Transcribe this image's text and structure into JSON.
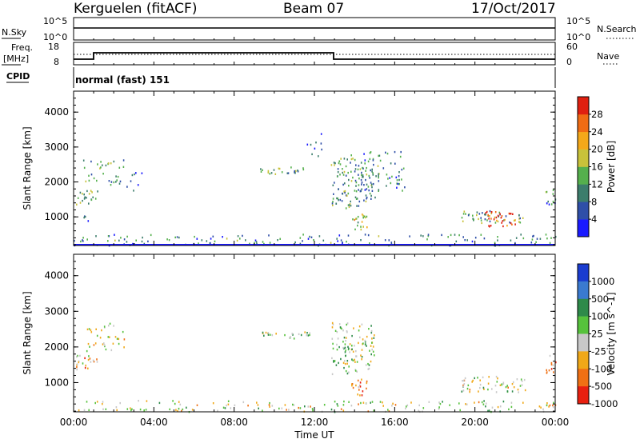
{
  "header": {
    "station": "Kerguelen (fitACF)",
    "beam": "Beam 07",
    "date": "17/Oct/2017"
  },
  "nsky": {
    "label": "N.Sky",
    "tick_top": "10^5",
    "tick_bottom": "10^0",
    "right_label": "N.Search",
    "right_tick_top": "10^5",
    "right_tick_bottom": "10^0"
  },
  "freq": {
    "label_line1": "Freq.",
    "label_line2": "[MHz]",
    "tick_top": "18",
    "tick_bottom": "8",
    "right_label": "Nave",
    "right_tick_top": "60",
    "right_tick_bottom": "0"
  },
  "cpid": {
    "label": "CPID",
    "text": "normal (fast) 151"
  },
  "chart_data": [
    {
      "type": "heatmap",
      "name": "Power",
      "ylabel": "Slant Range [km]",
      "xlabel": "Time UT",
      "xlim": [
        0,
        24
      ],
      "ylim": [
        180,
        4600
      ],
      "xticks": [
        "00:00",
        "04:00",
        "08:00",
        "12:00",
        "16:00",
        "20:00",
        "00:00"
      ],
      "yticks": [
        "1000",
        "2000",
        "3000",
        "4000"
      ],
      "colorbar": {
        "label": "Power [dB]",
        "ticks": [
          "4",
          "8",
          "12",
          "16",
          "20",
          "24",
          "28"
        ],
        "range": [
          0,
          30
        ],
        "colors": [
          "#1a1aff",
          "#2f4fa8",
          "#3c7d6c",
          "#55b04d",
          "#c8c23a",
          "#f4a81a",
          "#f06c14",
          "#e02010"
        ]
      },
      "ground_line_km": 180,
      "echo_regions": [
        {
          "t_start": 0.0,
          "t_end": 24.0,
          "r_start": 200,
          "r_end": 520,
          "level": 0.3,
          "density": 0.25
        },
        {
          "t_start": 0.1,
          "t_end": 1.2,
          "r_start": 1350,
          "r_end": 1800,
          "level": 0.4,
          "density": 0.55
        },
        {
          "t_start": 0.2,
          "t_end": 0.8,
          "r_start": 900,
          "r_end": 1050,
          "level": 0.2,
          "density": 0.4
        },
        {
          "t_start": 0.4,
          "t_end": 2.5,
          "r_start": 1900,
          "r_end": 2700,
          "level": 0.35,
          "density": 0.25
        },
        {
          "t_start": 2.5,
          "t_end": 3.4,
          "r_start": 1750,
          "r_end": 2300,
          "level": 0.2,
          "density": 0.2
        },
        {
          "t_start": 9.2,
          "t_end": 11.8,
          "r_start": 2250,
          "r_end": 2450,
          "level": 0.4,
          "density": 0.6
        },
        {
          "t_start": 11.5,
          "t_end": 12.5,
          "r_start": 2700,
          "r_end": 3500,
          "level": 0.2,
          "density": 0.15
        },
        {
          "t_start": 12.8,
          "t_end": 15.0,
          "r_start": 1250,
          "r_end": 2700,
          "level": 0.35,
          "density": 0.45
        },
        {
          "t_start": 13.8,
          "t_end": 16.5,
          "r_start": 1750,
          "r_end": 2900,
          "level": 0.3,
          "density": 0.3
        },
        {
          "t_start": 13.8,
          "t_end": 14.6,
          "r_start": 650,
          "r_end": 1150,
          "level": 0.55,
          "density": 0.6
        },
        {
          "t_start": 19.3,
          "t_end": 22.5,
          "r_start": 850,
          "r_end": 1200,
          "level": 0.4,
          "density": 0.5
        },
        {
          "t_start": 20.5,
          "t_end": 22.0,
          "r_start": 750,
          "r_end": 1200,
          "level": 0.9,
          "density": 0.6
        },
        {
          "t_start": 23.5,
          "t_end": 24.0,
          "r_start": 1250,
          "r_end": 1800,
          "level": 0.3,
          "density": 0.5
        }
      ]
    },
    {
      "type": "heatmap",
      "name": "Velocity",
      "ylabel": "Slant Range [km]",
      "xlabel": "Time UT",
      "xlim": [
        0,
        24
      ],
      "ylim": [
        180,
        4600
      ],
      "xticks": [
        "00:00",
        "04:00",
        "08:00",
        "12:00",
        "16:00",
        "20:00",
        "00:00"
      ],
      "yticks": [
        "1000",
        "2000",
        "3000",
        "4000"
      ],
      "colorbar": {
        "label": "Velocity [m s^-1]",
        "ticks": [
          "1000",
          "500",
          "100",
          "25",
          "-25",
          "-100",
          "-500",
          "-1000"
        ],
        "colors": [
          "#1a3cd0",
          "#3a7ad0",
          "#2e8a4a",
          "#56c23c",
          "#c8c8c8",
          "#f0a818",
          "#f07014",
          "#e82010"
        ]
      },
      "echo_regions": [
        {
          "t_start": 0.0,
          "t_end": 24.0,
          "r_start": 200,
          "r_end": 520,
          "level": 0.55,
          "density": 0.25
        },
        {
          "t_start": 0.1,
          "t_end": 1.2,
          "r_start": 1350,
          "r_end": 1800,
          "level": 0.7,
          "density": 0.55
        },
        {
          "t_start": 0.4,
          "t_end": 2.5,
          "r_start": 1900,
          "r_end": 2700,
          "level": 0.6,
          "density": 0.25
        },
        {
          "t_start": 9.2,
          "t_end": 11.8,
          "r_start": 2250,
          "r_end": 2450,
          "level": 0.5,
          "density": 0.6
        },
        {
          "t_start": 12.8,
          "t_end": 15.0,
          "r_start": 1250,
          "r_end": 2700,
          "level": 0.5,
          "density": 0.45
        },
        {
          "t_start": 13.8,
          "t_end": 14.6,
          "r_start": 650,
          "r_end": 1150,
          "level": 0.8,
          "density": 0.6
        },
        {
          "t_start": 19.3,
          "t_end": 22.5,
          "r_start": 750,
          "r_end": 1200,
          "level": 0.55,
          "density": 0.5
        },
        {
          "t_start": 23.5,
          "t_end": 24.0,
          "r_start": 1250,
          "r_end": 1800,
          "level": 0.7,
          "density": 0.5
        }
      ]
    }
  ]
}
